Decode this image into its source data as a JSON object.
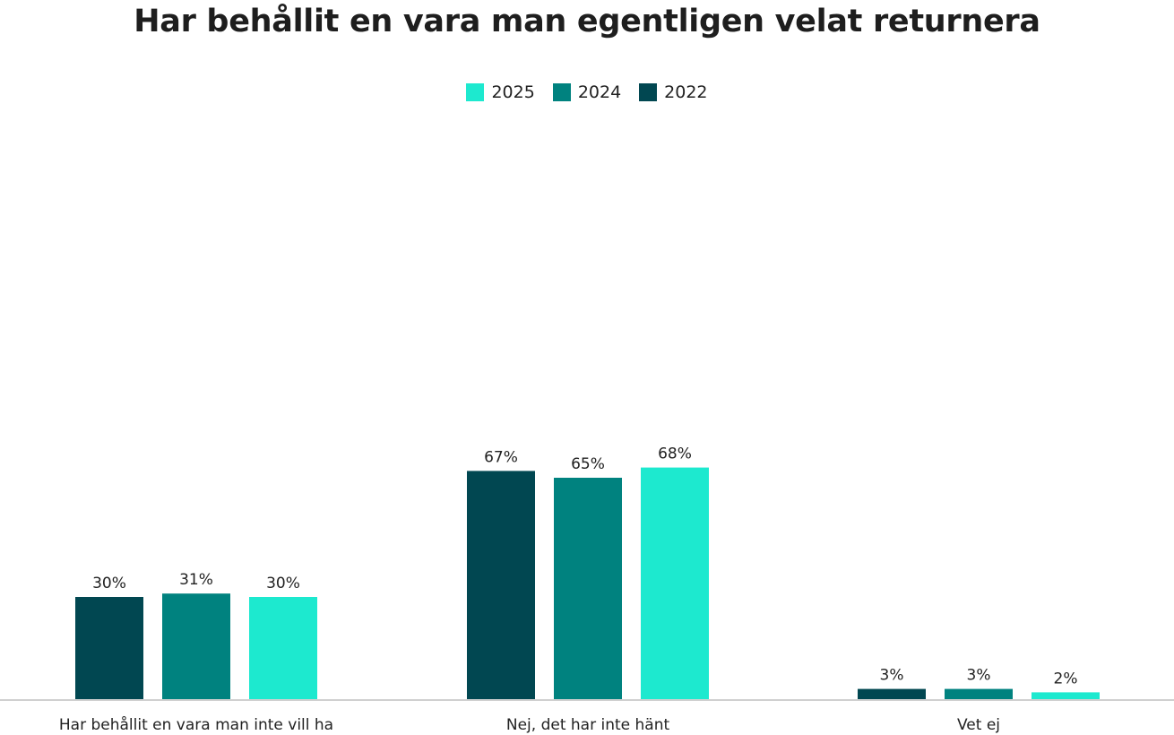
{
  "chart_data": {
    "type": "bar",
    "title": "Har behållit en vara man egentligen velat returnera",
    "categories": [
      "Har behållit en vara man inte vill ha",
      "Nej, det har inte hänt",
      "Vet ej"
    ],
    "series": [
      {
        "name": "2022",
        "color": "#014751",
        "values": [
          30,
          67,
          3
        ],
        "labels": [
          "30%",
          "67%",
          "3%"
        ]
      },
      {
        "name": "2024",
        "color": "#00827f",
        "values": [
          31,
          65,
          3
        ],
        "labels": [
          "31%",
          "65%",
          "3%"
        ]
      },
      {
        "name": "2025",
        "color": "#1de9cf",
        "values": [
          30,
          68,
          2
        ],
        "labels": [
          "30%",
          "68%",
          "2%"
        ]
      }
    ],
    "legend_order": [
      "2025",
      "2024",
      "2022"
    ],
    "ylim": [
      0,
      100
    ],
    "grid": false,
    "legend_position": "top-center",
    "baseline_color": "#d0d0d0"
  }
}
